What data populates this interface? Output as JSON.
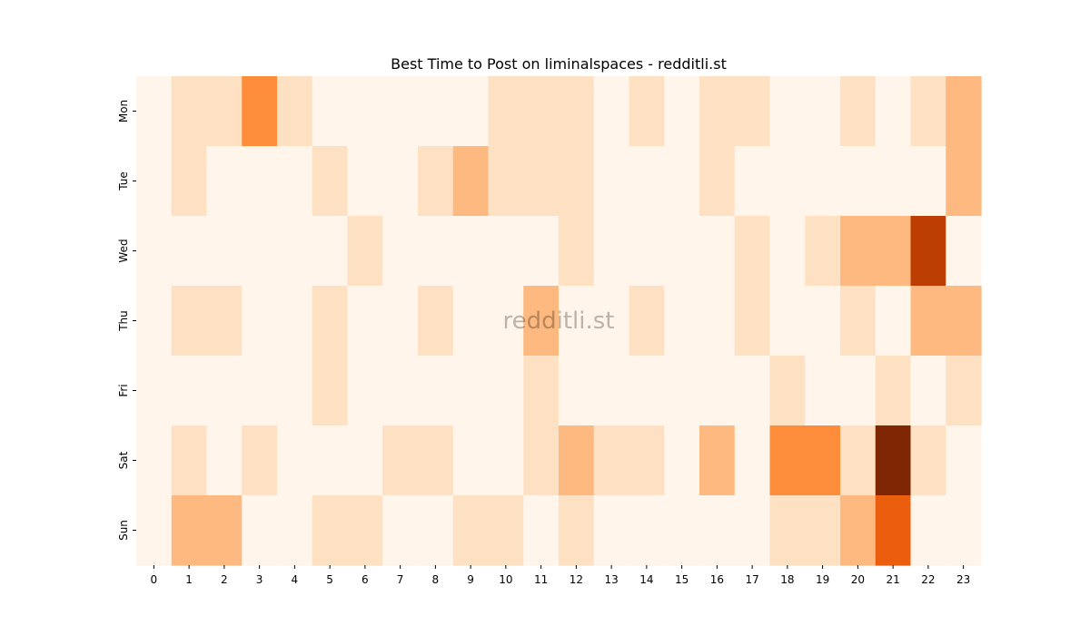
{
  "chart_data": {
    "type": "heatmap",
    "title": "Best Time to Post on liminalspaces - redditli.st",
    "watermark": "redditli.st",
    "xlabel": "",
    "ylabel": "",
    "x_categories": [
      "0",
      "1",
      "2",
      "3",
      "4",
      "5",
      "6",
      "7",
      "8",
      "9",
      "10",
      "11",
      "12",
      "13",
      "14",
      "15",
      "16",
      "17",
      "18",
      "19",
      "20",
      "21",
      "22",
      "23"
    ],
    "y_categories": [
      "Mon",
      "Tue",
      "Wed",
      "Thu",
      "Fri",
      "Sat",
      "Sun"
    ],
    "values": [
      [
        0,
        1,
        1,
        4,
        1,
        0,
        0,
        0,
        0,
        0,
        1,
        1,
        1,
        0,
        1,
        0,
        1,
        1,
        0,
        0,
        1,
        0,
        1,
        2
      ],
      [
        0,
        1,
        0,
        0,
        0,
        1,
        0,
        0,
        1,
        2,
        1,
        1,
        1,
        0,
        0,
        0,
        1,
        0,
        0,
        0,
        0,
        0,
        0,
        2
      ],
      [
        0,
        0,
        0,
        0,
        0,
        0,
        1,
        0,
        0,
        0,
        0,
        0,
        1,
        0,
        0,
        0,
        0,
        1,
        0,
        1,
        2,
        2,
        6,
        0
      ],
      [
        0,
        1,
        1,
        0,
        0,
        1,
        0,
        0,
        1,
        0,
        0,
        2,
        0,
        0,
        1,
        0,
        0,
        1,
        0,
        0,
        1,
        0,
        2,
        2
      ],
      [
        0,
        0,
        0,
        0,
        0,
        1,
        0,
        0,
        0,
        0,
        0,
        1,
        0,
        0,
        0,
        0,
        0,
        0,
        1,
        0,
        0,
        1,
        0,
        1
      ],
      [
        0,
        1,
        0,
        1,
        0,
        0,
        0,
        1,
        1,
        0,
        0,
        1,
        2,
        1,
        1,
        0,
        2,
        0,
        4,
        4,
        1,
        7,
        1,
        0
      ],
      [
        0,
        2,
        2,
        0,
        0,
        1,
        1,
        0,
        0,
        1,
        1,
        0,
        1,
        0,
        0,
        0,
        0,
        0,
        1,
        1,
        2,
        5,
        0,
        0
      ]
    ],
    "color_scale": {
      "name": "Oranges",
      "levels": [
        "#fff5eb",
        "#fee0c2",
        "#fdb97f",
        "#fd8c3b",
        "#fd8c3b",
        "#eb5e0e",
        "#bd3e03",
        "#7f2704"
      ]
    }
  }
}
